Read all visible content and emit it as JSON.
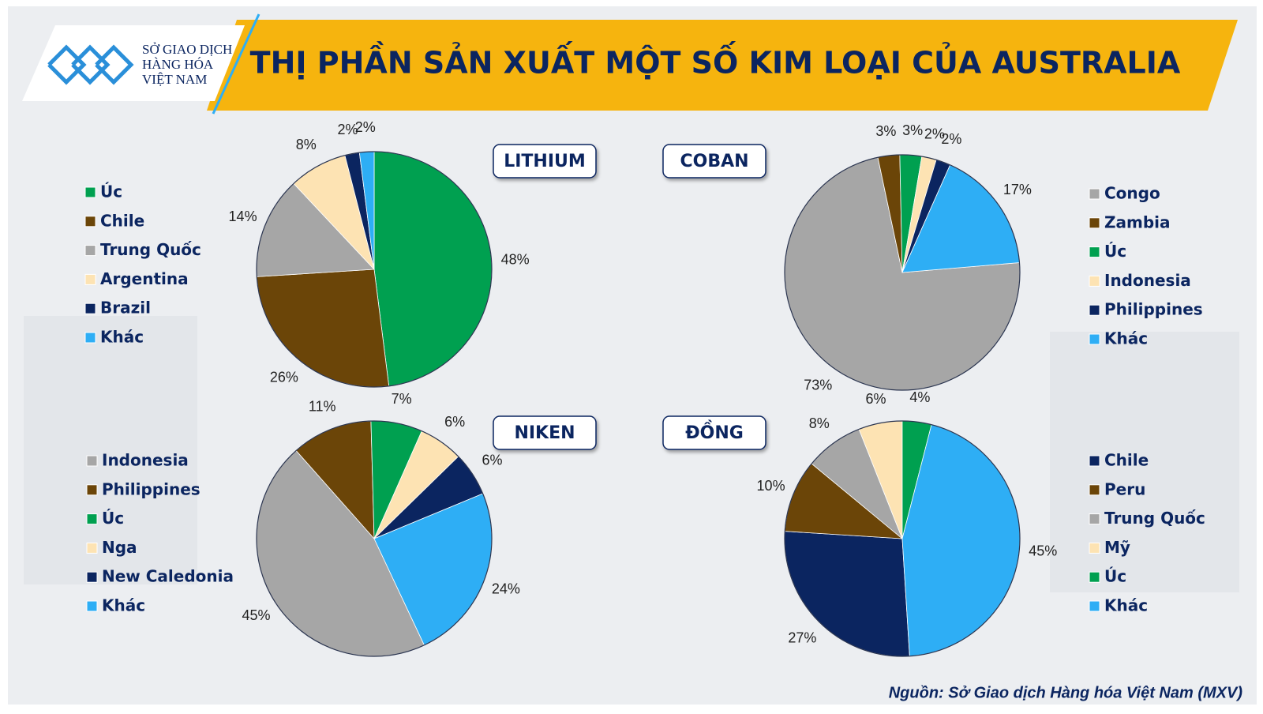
{
  "header": {
    "title": "THỊ PHẦN SẢN XUẤT MỘT SỐ KIM LOẠI CỦA AUSTRALIA",
    "logo_lines": [
      "SỞ GIAO DỊCH",
      "HÀNG HÓA",
      "VIỆT NAM"
    ]
  },
  "source": "Nguồn: Sở Giao dịch Hàng hóa Việt Nam (MXV)",
  "chart_data": [
    {
      "type": "pie",
      "title": "LITHIUM",
      "categories": [
        "Úc",
        "Chile",
        "Trung Quốc",
        "Argentina",
        "Brazil",
        "Khác"
      ],
      "values": [
        48,
        26,
        14,
        8,
        2,
        2
      ],
      "value_labels": [
        "48%",
        "26%",
        "14%",
        "8%",
        "2%",
        "2%"
      ],
      "colors": [
        "#00a050",
        "#6b4508",
        "#a6a6a6",
        "#fde3b3",
        "#0b2560",
        "#2eaef5"
      ]
    },
    {
      "type": "pie",
      "title": "COBAN",
      "categories": [
        "Congo",
        "Zambia",
        "Úc",
        "Indonesia",
        "Philippines",
        "Khác"
      ],
      "values": [
        73,
        3,
        3,
        2,
        2,
        17
      ],
      "value_labels": [
        "73%",
        "3%",
        "3%",
        "2%",
        "2%",
        "17%"
      ],
      "colors": [
        "#a6a6a6",
        "#6b4508",
        "#00a050",
        "#fde3b3",
        "#0b2560",
        "#2eaef5"
      ]
    },
    {
      "type": "pie",
      "title": "NIKEN",
      "categories": [
        "Indonesia",
        "Philippines",
        "Úc",
        "Nga",
        "New Caledonia",
        "Khác"
      ],
      "values": [
        45,
        11,
        7,
        6,
        6,
        24
      ],
      "value_labels": [
        "45%",
        "11%",
        "7%",
        "6%",
        "6%",
        "24%"
      ],
      "colors": [
        "#a6a6a6",
        "#6b4508",
        "#00a050",
        "#fde3b3",
        "#0b2560",
        "#2eaef5"
      ]
    },
    {
      "type": "pie",
      "title": "ĐỒNG",
      "categories": [
        "Chile",
        "Peru",
        "Trung Quốc",
        "Mỹ",
        "Úc",
        "Khác"
      ],
      "values": [
        27,
        10,
        8,
        6,
        4,
        45
      ],
      "value_labels": [
        "27%",
        "10%",
        "8%",
        "6%",
        "4%",
        "45%"
      ],
      "colors": [
        "#0b2560",
        "#6b4508",
        "#a6a6a6",
        "#fde3b3",
        "#00a050",
        "#2eaef5"
      ]
    }
  ]
}
